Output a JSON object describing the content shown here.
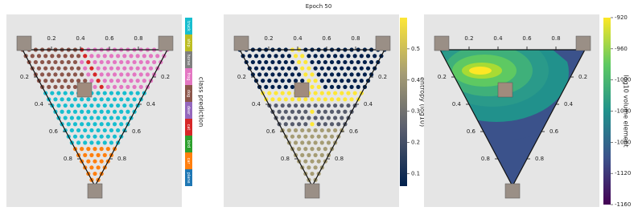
{
  "title": "Epoch 50",
  "chart_data": [
    {
      "type": "ternary",
      "ticks": [
        0.2,
        0.4,
        0.6,
        0.8
      ],
      "colorbar": {
        "kind": "categorical",
        "label": "class prediction",
        "categories": [
          "truck",
          "ship",
          "horse",
          "frog",
          "dog",
          "deer",
          "cat",
          "bird",
          "car",
          "plane"
        ],
        "colors": [
          "#17becf",
          "#bcbd22",
          "#7f7f7f",
          "#e377c2",
          "#8c564b",
          "#9467bd",
          "#d62728",
          "#2ca02c",
          "#ff7f0e",
          "#1f77b4"
        ]
      }
    },
    {
      "type": "ternary",
      "ticks": [
        0.2,
        0.4,
        0.6,
        0.8
      ],
      "colorbar": {
        "kind": "continuous",
        "label": "entropy (log10)",
        "lim": [
          0.06,
          0.6
        ],
        "ticks": [
          0.1,
          0.2,
          0.3,
          0.4,
          0.5
        ],
        "colors": [
          "#00204c",
          "#575c6d",
          "#a59c74",
          "#fde737"
        ]
      }
    },
    {
      "type": "ternary",
      "ticks": [
        0.2,
        0.4,
        0.6,
        0.8
      ],
      "colorbar": {
        "kind": "continuous",
        "label": "log10 volume element",
        "lim": [
          -1160,
          -920
        ],
        "ticks": [
          -920,
          -960,
          -1000,
          -1040,
          -1080,
          -1120,
          -1160
        ],
        "colors": [
          "#440154",
          "#3b528b",
          "#21918c",
          "#5ec962",
          "#fde725"
        ]
      }
    }
  ]
}
